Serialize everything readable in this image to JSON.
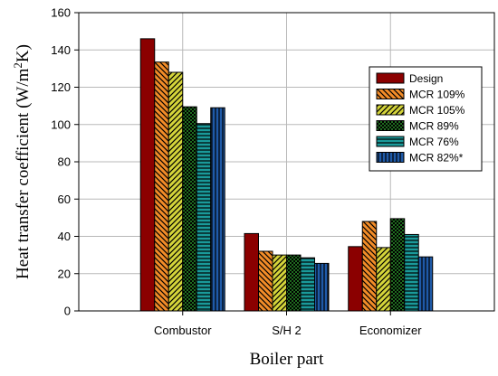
{
  "chart_data": {
    "type": "bar",
    "title": "",
    "xlabel": "Boiler part",
    "ylabel_main": "Heat transfer coefficient (W/m",
    "ylabel_sup": "2",
    "ylabel_tail": "K)",
    "ylim": [
      0,
      160
    ],
    "yticks": [
      0,
      20,
      40,
      60,
      80,
      100,
      120,
      140,
      160
    ],
    "grid": true,
    "legend_position": "top-right",
    "categories": [
      "Combustor",
      "S/H 2",
      "Economizer"
    ],
    "series": [
      {
        "name": "Design",
        "color": "#8b0000",
        "pattern": "solid",
        "values": [
          146,
          41.5,
          34.5
        ]
      },
      {
        "name": "MCR 109%",
        "color": "#f28c28",
        "pattern": "diagonal-down",
        "values": [
          133.5,
          32,
          48
        ]
      },
      {
        "name": "MCR 105%",
        "color": "#d4d43a",
        "pattern": "diagonal-up",
        "values": [
          128,
          30,
          34
        ]
      },
      {
        "name": "MCR 89%",
        "color": "#1f6b1f",
        "pattern": "checker",
        "values": [
          109.5,
          30,
          49.5
        ]
      },
      {
        "name": "MCR 76%",
        "color": "#1a9a9a",
        "pattern": "horizontal",
        "values": [
          100.5,
          28.5,
          41
        ]
      },
      {
        "name": "MCR 82%*",
        "color": "#1f5aa8",
        "pattern": "vertical",
        "values": [
          109,
          25.5,
          29
        ]
      }
    ]
  }
}
